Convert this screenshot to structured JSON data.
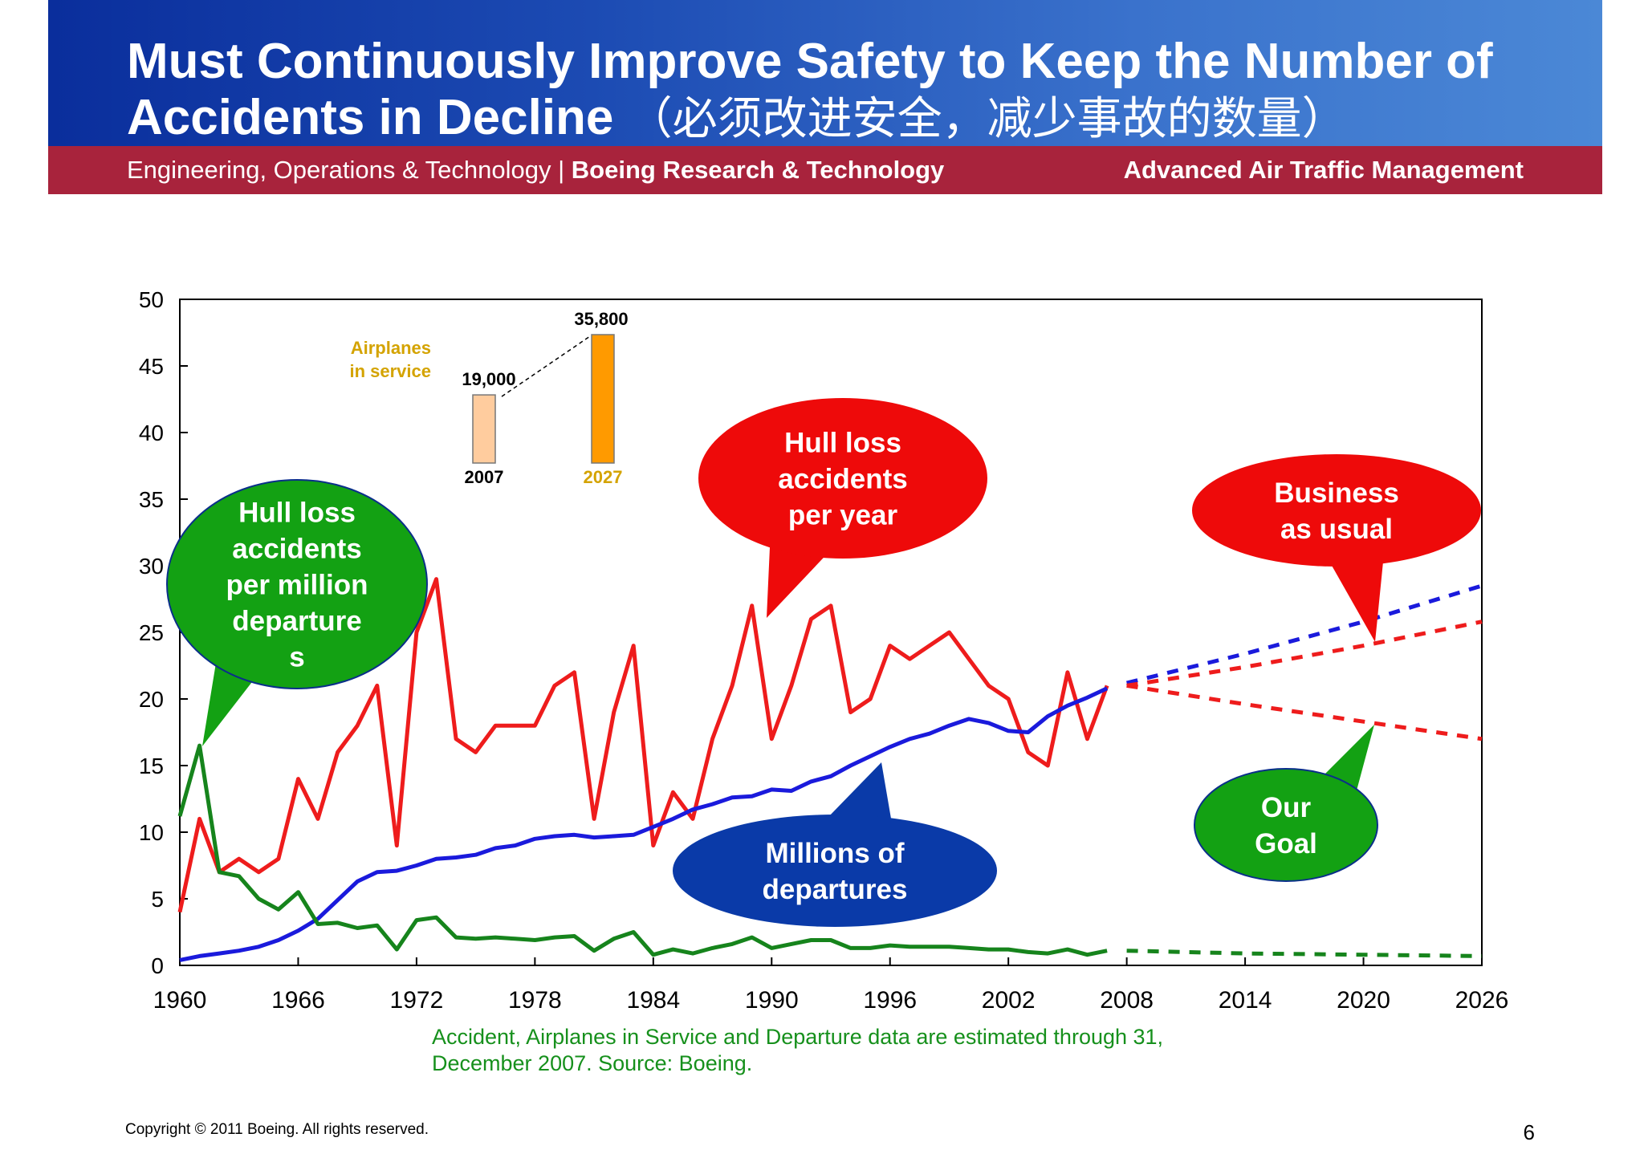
{
  "header": {
    "title": "Must Continuously Improve Safety to Keep the Number of Accidents in Decline",
    "title_cn": "（必须改进安全，减少事故的数量）",
    "subtitle_left": "Engineering, Operations & Technology | ",
    "subtitle_left_bold": "Boeing Research & Technology",
    "subtitle_right": "Advanced Air Traffic Management"
  },
  "footnote": "Accident, Airplanes in Service and Departure data are estimated through 31, December 2007. Source: Boeing.",
  "copyright": "Copyright © 2011 Boeing. All rights reserved.",
  "page_number": "6",
  "colors": {
    "hull_loss_per_year": "#ee1c1c",
    "departures": "#1a1adc",
    "hull_loss_per_million": "#16841c",
    "bubble_red": "#ee0a0a",
    "bubble_green": "#13a113",
    "bubble_blue": "#0a3aa8",
    "airplanes_2007": "#ffcc9e",
    "airplanes_2027": "#ff9a00",
    "airplanes_label": "#d4a300"
  },
  "chart_data": {
    "type": "line",
    "xlim": [
      1960,
      2026
    ],
    "ylim": [
      0,
      50
    ],
    "x_ticks": [
      "1960",
      "1966",
      "1972",
      "1978",
      "1984",
      "1990",
      "1996",
      "2002",
      "2008",
      "2014",
      "2020",
      "2026"
    ],
    "y_ticks": [
      "0",
      "5",
      "10",
      "15",
      "20",
      "25",
      "30",
      "35",
      "40",
      "45",
      "50"
    ],
    "grid": false,
    "series": [
      {
        "key": "hull_loss_per_year",
        "x": [
          1960,
          1961,
          1962,
          1963,
          1964,
          1965,
          1966,
          1967,
          1968,
          1969,
          1970,
          1971,
          1972,
          1973,
          1974,
          1975,
          1976,
          1977,
          1978,
          1979,
          1980,
          1981,
          1982,
          1983,
          1984,
          1985,
          1986,
          1987,
          1988,
          1989,
          1990,
          1991,
          1992,
          1993,
          1994,
          1995,
          1996,
          1997,
          1998,
          1999,
          2000,
          2001,
          2002,
          2003,
          2004,
          2005,
          2006,
          2007
        ],
        "y": [
          4,
          11,
          7,
          8,
          7,
          8,
          14,
          11,
          16,
          18,
          21,
          9,
          25,
          29,
          17,
          16,
          18,
          18,
          18,
          21,
          22,
          11,
          19,
          24,
          9,
          13,
          11,
          17,
          21,
          27,
          17,
          21,
          26,
          27,
          19,
          20,
          24,
          23,
          24,
          25,
          23,
          21,
          20,
          16,
          15,
          22,
          17,
          21
        ]
      },
      {
        "key": "departures",
        "x": [
          1960,
          1961,
          1962,
          1963,
          1964,
          1965,
          1966,
          1967,
          1968,
          1969,
          1970,
          1971,
          1972,
          1973,
          1974,
          1975,
          1976,
          1977,
          1978,
          1979,
          1980,
          1981,
          1982,
          1983,
          1984,
          1985,
          1986,
          1987,
          1988,
          1989,
          1990,
          1991,
          1992,
          1993,
          1994,
          1995,
          1996,
          1997,
          1998,
          1999,
          2000,
          2001,
          2002,
          2003,
          2004,
          2005,
          2006,
          2007
        ],
        "y": [
          0.4,
          0.7,
          0.9,
          1.1,
          1.4,
          1.9,
          2.6,
          3.5,
          4.9,
          6.3,
          7,
          7.1,
          7.5,
          8,
          8.1,
          8.3,
          8.8,
          9,
          9.5,
          9.7,
          9.8,
          9.6,
          9.7,
          9.8,
          10.4,
          11,
          11.7,
          12.1,
          12.6,
          12.7,
          13.2,
          13.1,
          13.8,
          14.2,
          15,
          15.7,
          16.4,
          17,
          17.4,
          18,
          18.5,
          18.2,
          17.6,
          17.5,
          18.7,
          19.5,
          20.1,
          20.8
        ]
      },
      {
        "key": "hull_loss_per_million",
        "x": [
          1960,
          1961,
          1962,
          1963,
          1964,
          1965,
          1966,
          1967,
          1968,
          1969,
          1970,
          1971,
          1972,
          1973,
          1974,
          1975,
          1976,
          1977,
          1978,
          1979,
          1980,
          1981,
          1982,
          1983,
          1984,
          1985,
          1986,
          1987,
          1988,
          1989,
          1990,
          1991,
          1992,
          1993,
          1994,
          1995,
          1996,
          1997,
          1998,
          1999,
          2000,
          2001,
          2002,
          2003,
          2004,
          2005,
          2006,
          2007
        ],
        "y": [
          11.2,
          16.5,
          7,
          6.7,
          5,
          4.2,
          5.5,
          3.1,
          3.2,
          2.8,
          3,
          1.2,
          3.4,
          3.6,
          2.1,
          2,
          2.1,
          2,
          1.9,
          2.1,
          2.2,
          1.1,
          2,
          2.5,
          0.8,
          1.2,
          0.9,
          1.3,
          1.6,
          2.1,
          1.3,
          1.6,
          1.9,
          1.9,
          1.3,
          1.3,
          1.5,
          1.4,
          1.4,
          1.4,
          1.3,
          1.2,
          1.2,
          1,
          0.9,
          1.2,
          0.8,
          1.1
        ]
      }
    ],
    "projections": [
      {
        "key": "departures_projection",
        "series": "departures",
        "x": [
          2008,
          2014,
          2020,
          2026
        ],
        "y": [
          21.2,
          23.4,
          25.8,
          28.5
        ]
      },
      {
        "key": "business_as_usual",
        "series": "hull_loss_per_year",
        "x": [
          2008,
          2014,
          2020,
          2026
        ],
        "y": [
          21,
          22.4,
          24,
          25.8
        ]
      },
      {
        "key": "our_goal",
        "series": "hull_loss_per_year",
        "x": [
          2008,
          2014,
          2020,
          2026
        ],
        "y": [
          21,
          19.6,
          18.3,
          17
        ]
      },
      {
        "key": "per_million_projection",
        "series": "hull_loss_per_million",
        "x": [
          2008,
          2014,
          2020,
          2026
        ],
        "y": [
          1.1,
          0.9,
          0.8,
          0.7
        ]
      }
    ],
    "callouts": [
      {
        "key": "hull_loss_per_million",
        "label": "Hull loss accidents per million departure s",
        "lines": [
          "Hull loss",
          "accidents",
          "per million",
          "departure",
          "s"
        ]
      },
      {
        "key": "hull_loss_per_year",
        "label": "Hull loss accidents per year",
        "lines": [
          "Hull loss",
          "accidents",
          "per year"
        ]
      },
      {
        "key": "business_as_usual",
        "label": "Business as usual",
        "lines": [
          "Business",
          "as usual"
        ]
      },
      {
        "key": "departures",
        "label": "Millions of departures",
        "lines": [
          "Millions of",
          "departures"
        ]
      },
      {
        "key": "our_goal",
        "label": "Our Goal",
        "lines": [
          "Our",
          "Goal"
        ]
      }
    ],
    "airplanes_in_service": {
      "label": [
        "Airplanes",
        "in service"
      ],
      "bars": [
        {
          "year": "2007",
          "value": 19000,
          "value_label": "19,000"
        },
        {
          "year": "2027",
          "value": 35800,
          "value_label": "35,800"
        }
      ]
    }
  }
}
